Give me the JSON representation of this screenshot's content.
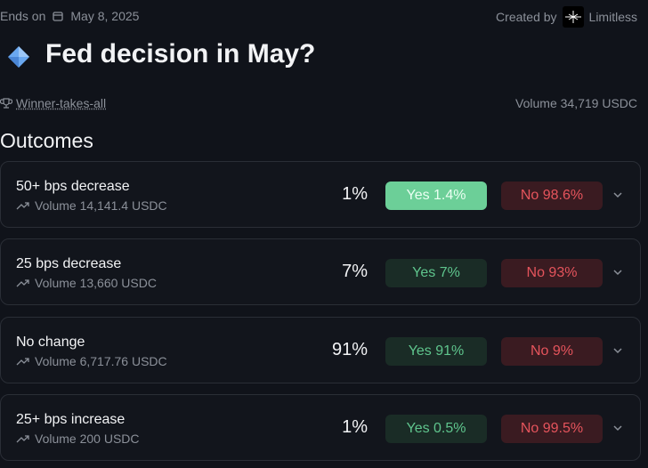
{
  "header": {
    "ends_label": "Ends on",
    "end_date": "May 8, 2025",
    "created_label": "Created by",
    "creator": "Limitless",
    "title": "Fed decision in May?",
    "market_type": "Winner-takes-all",
    "volume": "Volume 34,719 USDC"
  },
  "outcomes": {
    "title": "Outcomes",
    "rows": [
      {
        "name": "50+ bps decrease",
        "volume": "Volume 14,141.4 USDC",
        "percent": "1%",
        "yes": "Yes 1.4%",
        "no": "No 98.6%"
      },
      {
        "name": "25 bps decrease",
        "volume": "Volume 13,660 USDC",
        "percent": "7%",
        "yes": "Yes 7%",
        "no": "No 93%"
      },
      {
        "name": "No change",
        "volume": "Volume 6,717.76 USDC",
        "percent": "91%",
        "yes": "Yes 91%",
        "no": "No 9%"
      },
      {
        "name": "25+ bps increase",
        "volume": "Volume 200 USDC",
        "percent": "1%",
        "yes": "Yes 0.5%",
        "no": "No 99.5%"
      }
    ]
  }
}
